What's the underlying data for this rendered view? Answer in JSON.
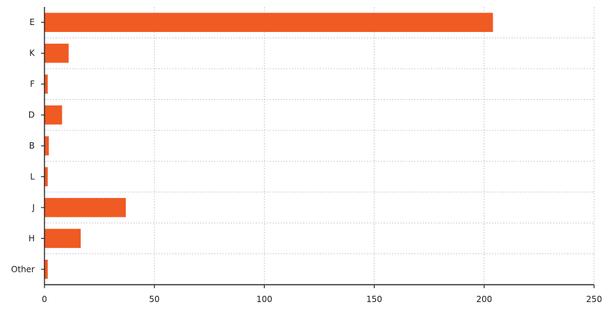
{
  "chart_data": {
    "type": "bar",
    "orientation": "horizontal",
    "categories": [
      "E",
      "K",
      "F",
      "D",
      "B",
      "L",
      "J",
      "H",
      "Other"
    ],
    "values": [
      204,
      11,
      1.5,
      8,
      2,
      1.5,
      37,
      16.5,
      1.5
    ],
    "xlim": [
      0,
      250
    ],
    "xticks": [
      "0",
      "50",
      "100",
      "150",
      "200",
      "250"
    ],
    "grid": true,
    "bar_color": "#f05a23",
    "title": "",
    "xlabel": "",
    "ylabel": ""
  }
}
